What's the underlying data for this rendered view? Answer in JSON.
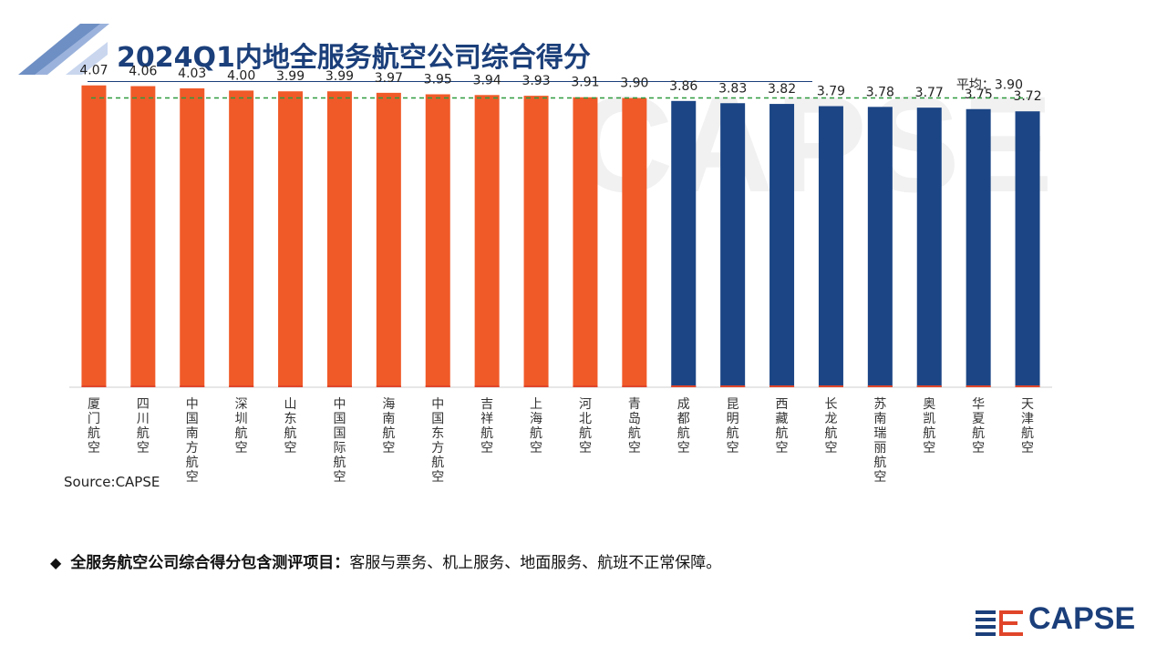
{
  "header": {
    "title": "2024Q1内地全服务航空公司综合得分"
  },
  "watermark_text": "CAPSE",
  "colors": {
    "above_avg": "#f05a28",
    "below_avg": "#1b4585",
    "avg_line": "#2e9b3e",
    "title": "#1b3f7a"
  },
  "chart_data": {
    "type": "bar",
    "categories": [
      "厦门航空",
      "四川航空",
      "中国南方航空",
      "深圳航空",
      "山东航空",
      "中国国际航空",
      "海南航空",
      "中国东方航空",
      "吉祥航空",
      "上海航空",
      "河北航空",
      "青岛航空",
      "成都航空",
      "昆明航空",
      "西藏航空",
      "长龙航空",
      "苏南瑞丽航空",
      "奥凯航空",
      "华夏航空",
      "天津航空"
    ],
    "values": [
      4.07,
      4.06,
      4.03,
      4.0,
      3.99,
      3.99,
      3.97,
      3.95,
      3.94,
      3.93,
      3.91,
      3.9,
      3.86,
      3.83,
      3.82,
      3.79,
      3.78,
      3.77,
      3.75,
      3.72
    ],
    "value_labels": [
      "4.07",
      "4.06",
      "4.03",
      "4.00",
      "3.99",
      "3.99",
      "3.97",
      "3.95",
      "3.94",
      "3.93",
      "3.91",
      "3.90",
      "3.86",
      "3.83",
      "3.82",
      "3.79",
      "3.78",
      "3.77",
      "3.75",
      "3.72"
    ],
    "groups": [
      "above",
      "above",
      "above",
      "above",
      "above",
      "above",
      "above",
      "above",
      "above",
      "above",
      "above",
      "above",
      "below",
      "below",
      "below",
      "below",
      "below",
      "below",
      "below",
      "below"
    ],
    "average": 3.9,
    "average_label": "平均：3.90",
    "title": "",
    "xlabel": "",
    "ylabel": "",
    "ylim": [
      0,
      4.3
    ],
    "grid": false
  },
  "source": "Source:CAPSE",
  "note": {
    "bullet": "◆",
    "bold": "全服务航空公司综合得分包含测评项目：",
    "text": "客服与票务、机上服务、地面服务、航班不正常保障。"
  },
  "logo": {
    "text": "CAPSE",
    "icon": "capse-flag-icon"
  }
}
